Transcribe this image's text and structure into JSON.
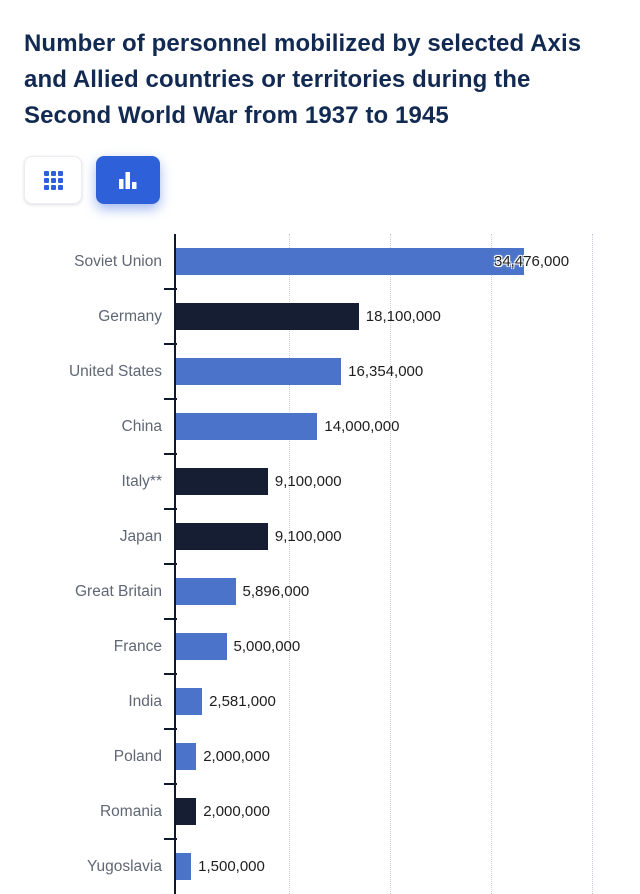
{
  "title": "Number of personnel mobilized by selected Axis and Allied countries or territories during the Second World War from 1937 to 1945",
  "toolbar": {
    "buttons": [
      {
        "name": "table-view",
        "icon": "table-grid-icon",
        "active": false
      },
      {
        "name": "chart-view",
        "icon": "bar-chart-icon",
        "active": true
      }
    ]
  },
  "chart_data": {
    "type": "bar",
    "orientation": "horizontal",
    "title": "Number of personnel mobilized by selected Axis and Allied countries or territories during the Second World War from 1937 to 1945",
    "categories": [
      "Soviet Union",
      "Germany",
      "United States",
      "China",
      "Italy**",
      "Japan",
      "Great Britain",
      "France",
      "India",
      "Poland",
      "Romania",
      "Yugoslavia"
    ],
    "values": [
      34476000,
      18100000,
      16354000,
      14000000,
      9100000,
      9100000,
      5896000,
      5000000,
      2581000,
      2000000,
      2000000,
      1500000
    ],
    "value_labels": [
      "34,476,000",
      "18,100,000",
      "16,354,000",
      "14,000,000",
      "9,100,000",
      "9,100,000",
      "5,896,000",
      "5,000,000",
      "2,581,000",
      "2,000,000",
      "2,000,000",
      "1,500,000"
    ],
    "groups": [
      "allied",
      "axis",
      "allied",
      "allied",
      "axis",
      "axis",
      "allied",
      "allied",
      "allied",
      "allied",
      "axis",
      "allied"
    ],
    "group_colors": {
      "allied": "#4B73C9",
      "axis": "#151E33"
    },
    "xlim": [
      0,
      40000000
    ],
    "gridline_values": [
      10000000,
      20000000,
      30000000,
      40000000
    ],
    "grid": "dotted-vertical",
    "legend": "none",
    "xlabel": "",
    "ylabel": ""
  },
  "colors": {
    "accent_blue": "#2E61D9",
    "bar_allied_blue": "#4B73C9",
    "bar_axis_dark": "#151E33",
    "title_navy": "#122A52",
    "category_label": "#5F6775",
    "value_label": "#1E1E1E",
    "axis_line": "#10192B",
    "gridline": "#C9CED8",
    "background": "#FFFFFF"
  }
}
